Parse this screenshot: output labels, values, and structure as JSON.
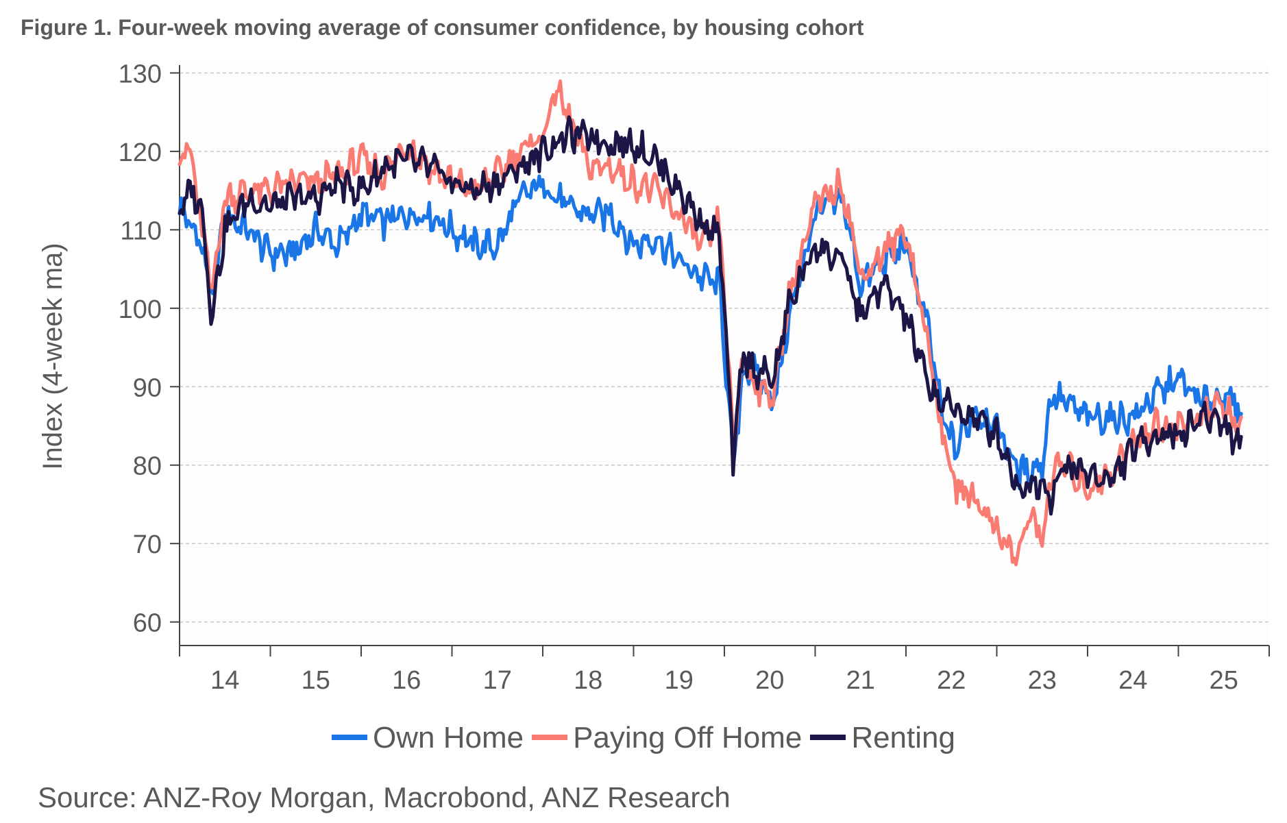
{
  "title": "Figure 1. Four-week moving average of consumer confidence, by housing cohort",
  "source": "Source: ANZ-Roy Morgan, Macrobond, ANZ Research",
  "colors": {
    "own_home": "#1a75e6",
    "paying_off": "#fa7b72",
    "renting": "#1c1646"
  },
  "chart_data": {
    "type": "line",
    "ylabel": "Index (4-week ma)",
    "ylim": [
      57,
      131
    ],
    "yticks": [
      60,
      70,
      80,
      90,
      100,
      110,
      120,
      130
    ],
    "xlim": [
      2014.0,
      2026.0
    ],
    "xticks": [
      "14",
      "15",
      "16",
      "17",
      "18",
      "19",
      "20",
      "21",
      "22",
      "23",
      "24",
      "25"
    ],
    "grid": true,
    "legend_position": "bottom",
    "series": [
      {
        "name": "Own Home",
        "color": "#1a75e6",
        "x": [
          2014.0,
          2014.25,
          2014.35,
          2014.5,
          2014.75,
          2015.0,
          2015.25,
          2015.5,
          2015.75,
          2016.0,
          2016.25,
          2016.5,
          2016.75,
          2017.0,
          2017.25,
          2017.5,
          2017.75,
          2018.0,
          2018.25,
          2018.5,
          2018.75,
          2019.0,
          2019.25,
          2019.5,
          2019.75,
          2019.95,
          2020.1,
          2020.2,
          2020.35,
          2020.55,
          2020.7,
          2021.0,
          2021.3,
          2021.5,
          2021.75,
          2022.0,
          2022.25,
          2022.4,
          2022.55,
          2022.75,
          2023.0,
          2023.25,
          2023.5,
          2023.6,
          2023.75,
          2024.0,
          2024.25,
          2024.5,
          2024.75,
          2025.0,
          2025.25,
          2025.45,
          2025.7
        ],
        "y": [
          113,
          108,
          101,
          112,
          110,
          107,
          107,
          110,
          108,
          112,
          111,
          112,
          112,
          110,
          108,
          108,
          114,
          116,
          113,
          112,
          112,
          108,
          109,
          106,
          104,
          103,
          79,
          92,
          92,
          88,
          98,
          112,
          114,
          103,
          106,
          108,
          97,
          86,
          82,
          87,
          85,
          79,
          80,
          89,
          88,
          86,
          86,
          86,
          89,
          91,
          88,
          89,
          87
        ]
      },
      {
        "name": "Paying Off Home",
        "color": "#fa7b72",
        "x": [
          2014.0,
          2014.1,
          2014.25,
          2014.35,
          2014.5,
          2014.75,
          2015.0,
          2015.25,
          2015.5,
          2015.75,
          2016.0,
          2016.25,
          2016.5,
          2016.75,
          2017.0,
          2017.25,
          2017.5,
          2017.75,
          2018.0,
          2018.15,
          2018.3,
          2018.5,
          2018.75,
          2019.0,
          2019.25,
          2019.5,
          2019.75,
          2019.95,
          2020.1,
          2020.2,
          2020.35,
          2020.55,
          2020.7,
          2021.0,
          2021.3,
          2021.5,
          2021.75,
          2022.0,
          2022.25,
          2022.4,
          2022.55,
          2022.75,
          2023.0,
          2023.2,
          2023.4,
          2023.5,
          2023.6,
          2023.75,
          2024.0,
          2024.25,
          2024.5,
          2024.75,
          2025.0,
          2025.25,
          2025.45,
          2025.7
        ],
        "y": [
          119,
          121,
          110,
          102,
          114,
          115,
          115,
          116,
          116,
          117,
          119,
          117,
          121,
          118,
          116,
          115,
          117,
          120,
          122,
          128,
          124,
          118,
          118,
          116,
          115,
          112,
          108,
          111,
          82,
          94,
          90,
          89,
          101,
          113,
          116,
          104,
          107,
          110,
          95,
          84,
          77,
          76,
          72,
          68,
          74,
          70,
          79,
          80,
          77,
          79,
          83,
          85,
          85,
          86,
          88,
          85
        ]
      },
      {
        "name": "Renting",
        "color": "#1c1646",
        "x": [
          2014.0,
          2014.1,
          2014.25,
          2014.35,
          2014.5,
          2014.75,
          2015.0,
          2015.25,
          2015.5,
          2015.75,
          2016.0,
          2016.25,
          2016.5,
          2016.75,
          2017.0,
          2017.25,
          2017.5,
          2017.75,
          2018.0,
          2018.25,
          2018.5,
          2018.75,
          2019.0,
          2019.25,
          2019.5,
          2019.75,
          2019.95,
          2020.1,
          2020.2,
          2020.35,
          2020.55,
          2020.7,
          2021.0,
          2021.3,
          2021.5,
          2021.75,
          2022.0,
          2022.25,
          2022.4,
          2022.55,
          2022.75,
          2023.0,
          2023.25,
          2023.5,
          2023.6,
          2023.75,
          2024.0,
          2024.25,
          2024.5,
          2024.75,
          2025.0,
          2025.25,
          2025.45,
          2025.7
        ],
        "y": [
          112,
          115,
          113,
          99,
          110,
          114,
          113,
          114,
          114,
          116,
          115,
          118,
          119,
          118,
          116,
          115,
          116,
          118,
          120,
          122,
          122,
          121,
          121,
          119,
          115,
          111,
          109,
          80,
          94,
          92,
          91,
          100,
          108,
          106,
          99,
          103,
          99,
          90,
          88,
          87,
          86,
          84,
          77,
          78,
          76,
          80,
          79,
          78,
          82,
          84,
          84,
          86,
          86,
          82
        ]
      }
    ]
  }
}
